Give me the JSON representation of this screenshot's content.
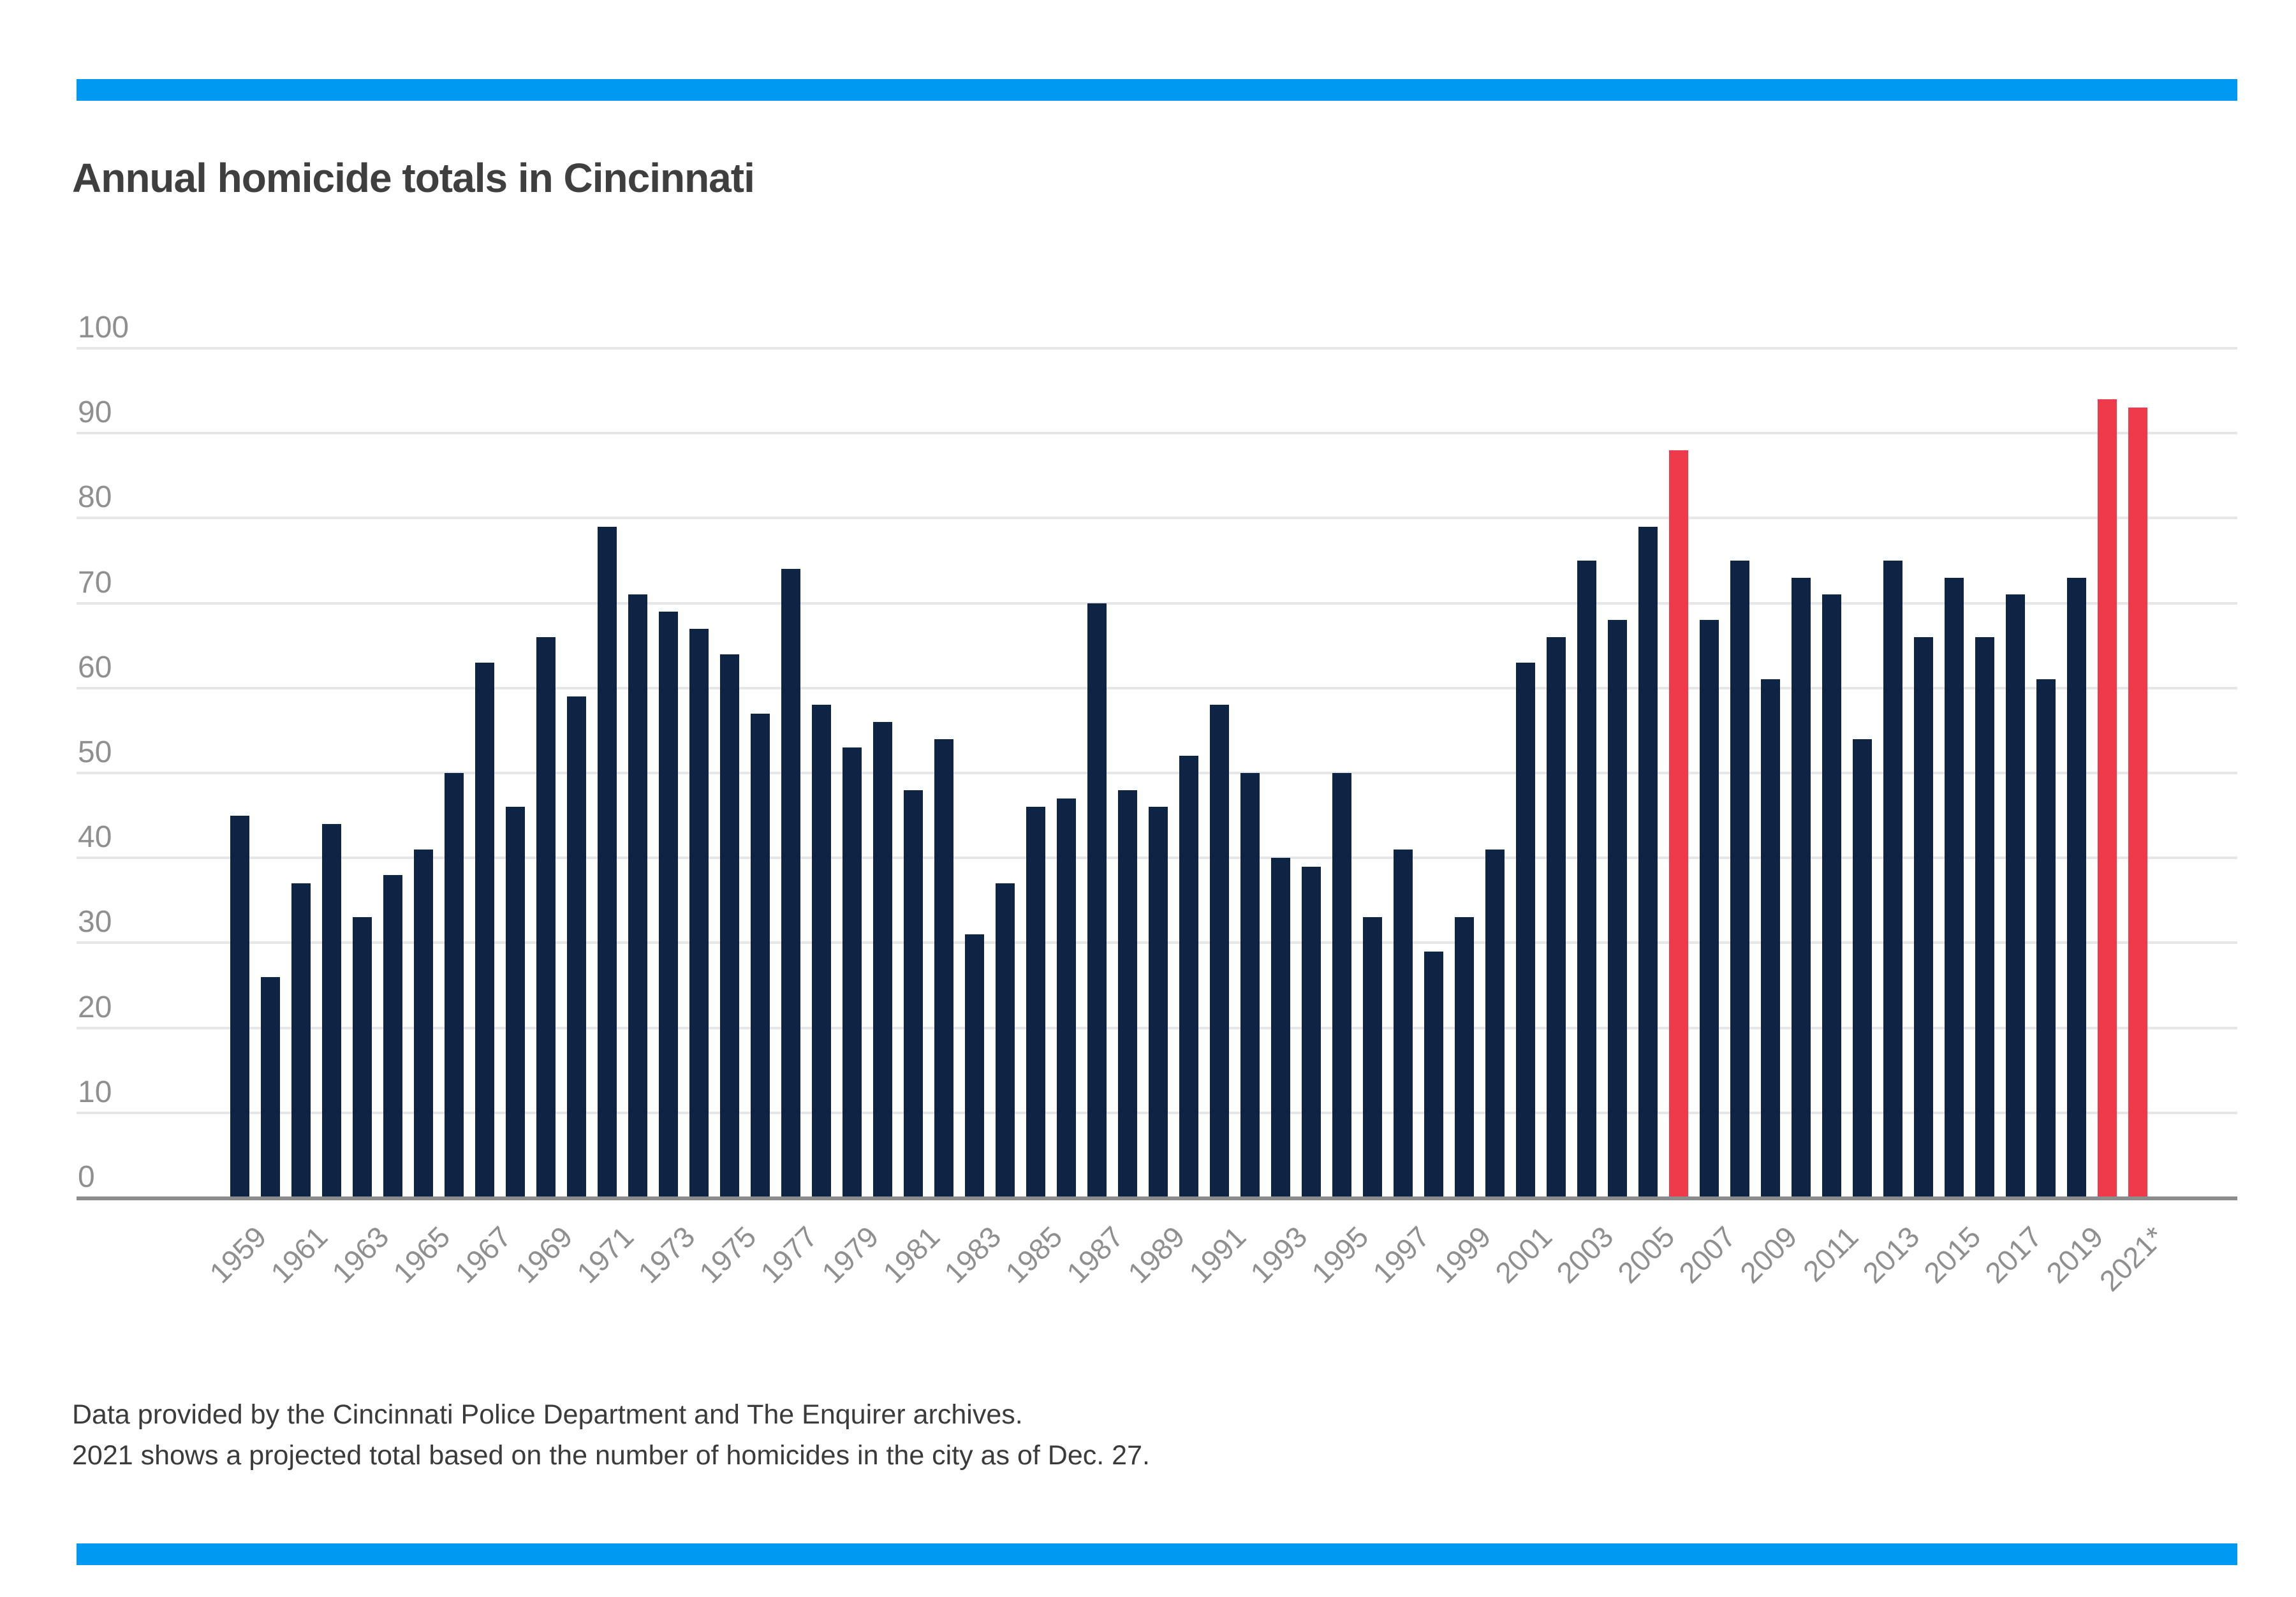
{
  "title": "Annual homicide totals in Cincinnati",
  "footnote": {
    "line1": "Data provided by the Cincinnati Police Department and The Enquirer archives.",
    "line2": "2021 shows a projected total based on the number of homicides in the city as of Dec. 27."
  },
  "colors": {
    "banner_blue": "#0099f1",
    "bar_navy": "#0e2444",
    "bar_highlight_red": "#ef3a4c",
    "gridline_gray": "#e6e6e6",
    "axis_baseline_gray": "#8c8c8c",
    "axis_text_gray": "#8f8f8f",
    "title_gray": "#3f3f3f",
    "footnote_gray": "#3b3b3b"
  },
  "chart_data": {
    "type": "bar",
    "title": "Annual homicide totals in Cincinnati",
    "xlabel": "",
    "ylabel": "",
    "ylim": [
      0,
      100
    ],
    "yticks": [
      0,
      10,
      20,
      30,
      40,
      50,
      60,
      70,
      80,
      90,
      100
    ],
    "grid": true,
    "legend": "none",
    "categories": [
      1959,
      1960,
      1961,
      1962,
      1963,
      1964,
      1965,
      1966,
      1967,
      1968,
      1969,
      1970,
      1971,
      1972,
      1973,
      1974,
      1975,
      1976,
      1977,
      1978,
      1979,
      1980,
      1981,
      1982,
      1983,
      1984,
      1985,
      1986,
      1987,
      1988,
      1989,
      1990,
      1991,
      1992,
      1993,
      1994,
      1995,
      1996,
      1997,
      1998,
      1999,
      2000,
      2001,
      2002,
      2003,
      2004,
      2005,
      2006,
      2007,
      2008,
      2009,
      2010,
      2011,
      2012,
      2013,
      2014,
      2015,
      2016,
      2017,
      2018,
      2019,
      2020,
      2021
    ],
    "values": [
      45,
      26,
      37,
      44,
      33,
      38,
      41,
      50,
      63,
      46,
      66,
      59,
      79,
      71,
      69,
      67,
      64,
      57,
      74,
      58,
      53,
      56,
      48,
      54,
      31,
      37,
      46,
      47,
      70,
      48,
      46,
      52,
      58,
      50,
      40,
      39,
      50,
      33,
      41,
      29,
      33,
      41,
      63,
      66,
      75,
      68,
      79,
      88,
      68,
      75,
      61,
      73,
      71,
      54,
      75,
      66,
      73,
      66,
      71,
      61,
      73,
      94,
      93
    ],
    "highlighted_years": [
      2006,
      2020,
      2021
    ],
    "x_tick_labels": [
      "1959",
      "1961",
      "1963",
      "1965",
      "1967",
      "1969",
      "1971",
      "1973",
      "1975",
      "1977",
      "1979",
      "1981",
      "1983",
      "1985",
      "1987",
      "1989",
      "1991",
      "1993",
      "1995",
      "1997",
      "1999",
      "2001",
      "2003",
      "2005",
      "2007",
      "2009",
      "2011",
      "2013",
      "2015",
      "2017",
      "2019",
      "2021*"
    ],
    "x_tick_every": 2
  }
}
